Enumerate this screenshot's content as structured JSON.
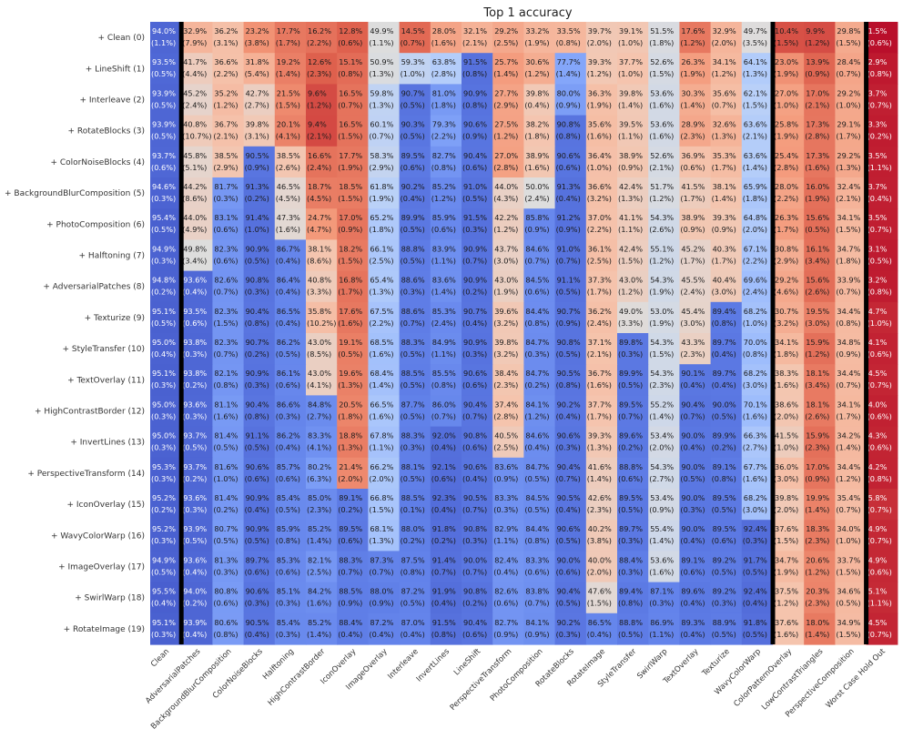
{
  "chart_data": {
    "type": "heatmap",
    "title": "Top 1 accuracy",
    "rows": [
      "+ Clean (0)",
      "+ LineShift (1)",
      "+ Interleave (2)",
      "+ RotateBlocks (3)",
      "+ ColorNoiseBlocks (4)",
      "+ BackgroundBlurComposition (5)",
      "+ PhotoComposition (6)",
      "+ Halftoning (7)",
      "+ AdversarialPatches (8)",
      "+ Texturize (9)",
      "+ StyleTransfer (10)",
      "+ TextOverlay (11)",
      "+ HighContrastBorder (12)",
      "+ InvertLines (13)",
      "+ PerspectiveTransform (14)",
      "+ IconOverlay (15)",
      "+ WavyColorWarp (16)",
      "+ ImageOverlay (17)",
      "+ SwirlWarp (18)",
      "+ RotateImage (19)"
    ],
    "columns": [
      "Clean",
      "AdversarialPatches",
      "BackgroundBlurComposition",
      "ColorNoiseBlocks",
      "Halftoning",
      "HighContrastBorder",
      "IconOverlay",
      "ImageOverlay",
      "Interleave",
      "InvertLines",
      "LineShift",
      "PerspectiveTransform",
      "PhotoComposition",
      "RotateBlocks",
      "RotateImage",
      "StyleTransfer",
      "SwirlWarp",
      "TextOverlay",
      "Texturize",
      "WavyColorWarp",
      "ColorPatternOverlay",
      "LowContrastTriangles",
      "PerspectiveComposition",
      "Worst Case Hold Out"
    ],
    "colormap": "coolwarm",
    "value_range": [
      0,
      100
    ],
    "separators_after_columns": [
      "Clean",
      "WavyColorWarp",
      "PerspectiveComposition"
    ],
    "values": [
      [
        "94.0",
        "32.9",
        "36.2",
        "23.2",
        "17.7",
        "16.2",
        "12.8",
        "49.9",
        "14.5",
        "28.0",
        "32.1",
        "29.2",
        "33.2",
        "33.5",
        "39.7",
        "39.1",
        "51.5",
        "17.6",
        "32.9",
        "49.7",
        "10.4",
        "9.9",
        "29.8",
        "1.5"
      ],
      [
        "93.5",
        "41.7",
        "36.6",
        "31.8",
        "19.2",
        "12.6",
        "15.1",
        "50.9",
        "59.3",
        "63.8",
        "91.5",
        "25.7",
        "30.6",
        "77.7",
        "39.3",
        "37.7",
        "52.6",
        "26.3",
        "34.1",
        "64.1",
        "23.0",
        "13.9",
        "28.4",
        "2.9"
      ],
      [
        "93.9",
        "45.2",
        "35.2",
        "42.7",
        "21.5",
        "9.6",
        "16.5",
        "59.8",
        "90.7",
        "81.0",
        "90.9",
        "27.7",
        "39.8",
        "80.0",
        "36.3",
        "39.8",
        "53.6",
        "30.3",
        "35.6",
        "62.1",
        "27.0",
        "17.0",
        "29.2",
        "3.7"
      ],
      [
        "93.9",
        "40.8",
        "36.7",
        "39.8",
        "20.1",
        "9.4",
        "16.5",
        "60.1",
        "90.3",
        "79.3",
        "90.6",
        "27.5",
        "38.2",
        "90.8",
        "35.6",
        "39.5",
        "53.6",
        "28.9",
        "32.6",
        "63.6",
        "25.8",
        "17.3",
        "29.1",
        "3.3"
      ],
      [
        "93.7",
        "45.8",
        "38.5",
        "90.5",
        "38.5",
        "16.6",
        "17.7",
        "58.3",
        "89.5",
        "82.7",
        "90.4",
        "27.0",
        "38.9",
        "90.6",
        "36.4",
        "38.9",
        "52.6",
        "36.9",
        "35.3",
        "63.6",
        "25.4",
        "17.3",
        "29.2",
        "3.5"
      ],
      [
        "94.6",
        "44.2",
        "81.7",
        "91.3",
        "46.5",
        "18.7",
        "18.5",
        "61.8",
        "90.2",
        "85.2",
        "91.0",
        "44.0",
        "50.0",
        "91.3",
        "36.6",
        "42.4",
        "51.7",
        "41.5",
        "38.1",
        "65.9",
        "28.0",
        "16.0",
        "32.4",
        "3.7"
      ],
      [
        "95.4",
        "44.0",
        "83.1",
        "91.4",
        "47.3",
        "24.7",
        "17.0",
        "65.2",
        "89.9",
        "85.9",
        "91.5",
        "42.2",
        "85.8",
        "91.2",
        "37.0",
        "41.1",
        "54.3",
        "38.9",
        "39.3",
        "64.8",
        "26.3",
        "15.6",
        "34.1",
        "3.5"
      ],
      [
        "94.9",
        "49.8",
        "82.3",
        "90.9",
        "86.7",
        "38.1",
        "18.2",
        "66.1",
        "88.8",
        "83.9",
        "90.9",
        "43.7",
        "84.6",
        "91.0",
        "36.1",
        "42.4",
        "55.1",
        "45.2",
        "40.3",
        "67.1",
        "30.8",
        "16.1",
        "34.7",
        "3.1"
      ],
      [
        "94.8",
        "93.6",
        "82.6",
        "90.8",
        "86.4",
        "40.8",
        "16.8",
        "65.4",
        "88.6",
        "83.6",
        "90.9",
        "43.0",
        "84.5",
        "91.1",
        "37.3",
        "43.0",
        "54.3",
        "45.5",
        "40.4",
        "69.6",
        "29.2",
        "15.6",
        "33.9",
        "3.2"
      ],
      [
        "95.1",
        "93.5",
        "82.3",
        "90.4",
        "86.5",
        "35.8",
        "17.6",
        "67.5",
        "88.6",
        "85.3",
        "90.7",
        "39.6",
        "84.4",
        "90.7",
        "36.2",
        "49.0",
        "53.0",
        "45.4",
        "89.4",
        "68.2",
        "30.7",
        "19.5",
        "34.4",
        "4.7"
      ],
      [
        "95.0",
        "93.8",
        "82.3",
        "90.7",
        "86.2",
        "43.0",
        "19.1",
        "68.5",
        "88.3",
        "84.9",
        "90.9",
        "39.8",
        "84.7",
        "90.8",
        "37.1",
        "89.8",
        "54.3",
        "43.3",
        "89.7",
        "70.0",
        "34.1",
        "15.9",
        "34.8",
        "4.1"
      ],
      [
        "95.1",
        "93.8",
        "82.1",
        "90.9",
        "86.1",
        "43.0",
        "19.6",
        "68.4",
        "88.5",
        "85.5",
        "90.6",
        "38.4",
        "84.7",
        "90.5",
        "36.7",
        "89.9",
        "54.3",
        "90.1",
        "89.7",
        "68.2",
        "38.3",
        "18.1",
        "34.4",
        "4.5"
      ],
      [
        "95.0",
        "93.6",
        "81.1",
        "90.4",
        "86.6",
        "84.8",
        "20.5",
        "66.5",
        "87.7",
        "86.0",
        "90.4",
        "37.4",
        "84.1",
        "90.2",
        "37.7",
        "89.5",
        "55.2",
        "90.4",
        "90.0",
        "70.1",
        "38.6",
        "18.1",
        "34.1",
        "4.0"
      ],
      [
        "95.0",
        "93.7",
        "81.4",
        "91.1",
        "86.2",
        "83.3",
        "18.8",
        "67.8",
        "88.3",
        "92.0",
        "90.8",
        "40.5",
        "84.6",
        "90.6",
        "39.3",
        "89.6",
        "53.4",
        "90.0",
        "89.9",
        "66.3",
        "41.5",
        "15.9",
        "34.2",
        "4.3"
      ],
      [
        "95.3",
        "93.7",
        "81.6",
        "90.6",
        "85.7",
        "80.2",
        "21.4",
        "66.2",
        "88.1",
        "92.1",
        "90.6",
        "83.6",
        "84.7",
        "90.4",
        "41.6",
        "88.8",
        "54.3",
        "90.0",
        "89.1",
        "67.7",
        "36.0",
        "17.0",
        "34.4",
        "4.2"
      ],
      [
        "95.2",
        "93.6",
        "81.4",
        "90.9",
        "85.4",
        "85.0",
        "89.1",
        "66.8",
        "88.5",
        "92.3",
        "90.5",
        "83.3",
        "84.5",
        "90.5",
        "42.6",
        "89.5",
        "53.4",
        "90.0",
        "89.5",
        "68.2",
        "39.8",
        "19.9",
        "35.4",
        "5.8"
      ],
      [
        "95.2",
        "93.9",
        "80.7",
        "90.9",
        "85.9",
        "85.2",
        "89.5",
        "68.1",
        "88.0",
        "91.8",
        "90.8",
        "82.9",
        "84.4",
        "90.6",
        "40.2",
        "89.7",
        "55.4",
        "90.0",
        "89.5",
        "92.4",
        "37.6",
        "18.3",
        "34.0",
        "4.9"
      ],
      [
        "94.9",
        "93.6",
        "81.3",
        "89.7",
        "85.3",
        "82.1",
        "88.3",
        "87.3",
        "87.5",
        "91.4",
        "90.0",
        "82.4",
        "83.3",
        "90.0",
        "40.0",
        "88.4",
        "53.6",
        "89.1",
        "89.2",
        "91.7",
        "34.7",
        "20.6",
        "33.7",
        "4.9"
      ],
      [
        "95.5",
        "94.0",
        "80.8",
        "90.6",
        "85.1",
        "84.2",
        "88.5",
        "88.0",
        "87.2",
        "91.9",
        "90.8",
        "82.6",
        "83.8",
        "90.4",
        "47.6",
        "89.4",
        "87.1",
        "89.6",
        "89.2",
        "92.4",
        "37.5",
        "20.3",
        "34.6",
        "5.1"
      ],
      [
        "95.1",
        "93.9",
        "80.6",
        "90.5",
        "85.4",
        "85.2",
        "88.4",
        "87.2",
        "87.0",
        "91.5",
        "90.4",
        "82.7",
        "84.1",
        "90.2",
        "86.5",
        "88.8",
        "86.9",
        "89.3",
        "88.9",
        "91.8",
        "37.6",
        "18.0",
        "34.9",
        "4.5"
      ]
    ],
    "stderr": [
      [
        "1.1",
        "7.9",
        "3.1",
        "3.8",
        "1.7",
        "2.2",
        "0.6",
        "1.1",
        "0.7",
        "1.6",
        "2.1",
        "2.5",
        "1.9",
        "0.8",
        "2.0",
        "1.0",
        "1.8",
        "1.2",
        "2.0",
        "3.5",
        "1.5",
        "1.2",
        "1.5",
        "0.6"
      ],
      [
        "0.5",
        "4.4",
        "2.2",
        "5.4",
        "1.4",
        "2.3",
        "0.8",
        "1.3",
        "1.0",
        "2.8",
        "0.8",
        "1.4",
        "1.2",
        "1.4",
        "1.2",
        "1.0",
        "1.5",
        "1.9",
        "1.2",
        "1.3",
        "1.9",
        "0.9",
        "0.7",
        "0.8"
      ],
      [
        "0.5",
        "2.4",
        "1.2",
        "2.7",
        "1.5",
        "1.2",
        "0.7",
        "1.3",
        "0.5",
        "1.8",
        "0.8",
        "2.9",
        "0.4",
        "0.9",
        "1.9",
        "1.4",
        "1.6",
        "1.4",
        "0.7",
        "1.5",
        "1.0",
        "2.1",
        "1.0",
        "0.7"
      ],
      [
        "0.5",
        "10.7",
        "2.1",
        "3.1",
        "4.1",
        "2.1",
        "1.5",
        "0.7",
        "0.5",
        "2.2",
        "0.9",
        "1.2",
        "1.8",
        "0.8",
        "1.6",
        "1.1",
        "1.6",
        "2.3",
        "1.3",
        "2.1",
        "1.9",
        "2.8",
        "1.7",
        "0.2"
      ],
      [
        "0.6",
        "5.1",
        "2.9",
        "0.9",
        "2.6",
        "2.4",
        "1.9",
        "2.9",
        "0.6",
        "0.8",
        "0.6",
        "2.8",
        "1.6",
        "0.6",
        "1.0",
        "0.9",
        "2.1",
        "0.6",
        "1.7",
        "1.4",
        "2.8",
        "1.6",
        "1.3",
        "1.1"
      ],
      [
        "0.3",
        "8.6",
        "0.3",
        "0.2",
        "4.5",
        "4.5",
        "1.5",
        "1.9",
        "0.4",
        "1.2",
        "0.5",
        "4.3",
        "2.4",
        "0.4",
        "3.2",
        "1.3",
        "1.2",
        "1.7",
        "1.4",
        "1.8",
        "2.2",
        "1.9",
        "2.1",
        "0.4"
      ],
      [
        "0.5",
        "4.9",
        "0.6",
        "1.0",
        "1.6",
        "4.7",
        "0.9",
        "1.8",
        "0.5",
        "0.6",
        "0.3",
        "1.2",
        "0.9",
        "0.9",
        "2.2",
        "1.1",
        "2.6",
        "0.9",
        "0.9",
        "2.0",
        "1.7",
        "0.5",
        "1.5",
        "0.7"
      ],
      [
        "0.3",
        "3.4",
        "0.6",
        "0.5",
        "0.4",
        "8.6",
        "1.5",
        "2.5",
        "0.5",
        "1.1",
        "0.7",
        "3.0",
        "0.7",
        "0.7",
        "2.5",
        "1.5",
        "1.2",
        "1.7",
        "1.7",
        "2.2",
        "2.9",
        "3.4",
        "1.8",
        "0.5"
      ],
      [
        "0.2",
        "0.4",
        "0.7",
        "0.3",
        "0.4",
        "3.3",
        "1.7",
        "1.3",
        "0.3",
        "1.4",
        "0.2",
        "1.9",
        "0.6",
        "0.5",
        "1.7",
        "1.2",
        "1.9",
        "2.4",
        "3.0",
        "2.4",
        "4.6",
        "2.6",
        "0.7",
        "0.8"
      ],
      [
        "0.5",
        "0.6",
        "1.5",
        "0.8",
        "0.4",
        "10.2",
        "1.6",
        "2.2",
        "0.7",
        "2.4",
        "0.4",
        "3.2",
        "0.8",
        "0.9",
        "2.4",
        "3.3",
        "1.9",
        "3.0",
        "0.8",
        "1.0",
        "3.2",
        "3.0",
        "0.8",
        "1.0"
      ],
      [
        "0.4",
        "0.3",
        "0.7",
        "0.2",
        "0.5",
        "8.5",
        "0.5",
        "1.6",
        "0.5",
        "1.1",
        "0.3",
        "3.2",
        "0.3",
        "0.5",
        "2.1",
        "0.3",
        "1.5",
        "2.3",
        "0.4",
        "0.8",
        "1.8",
        "1.2",
        "0.9",
        "0.6"
      ],
      [
        "0.3",
        "0.2",
        "0.8",
        "0.3",
        "0.6",
        "4.1",
        "1.3",
        "1.4",
        "0.5",
        "0.8",
        "0.6",
        "2.3",
        "0.2",
        "0.8",
        "1.6",
        "0.5",
        "2.3",
        "0.4",
        "0.4",
        "3.0",
        "1.6",
        "3.4",
        "0.7",
        "0.7"
      ],
      [
        "0.3",
        "0.3",
        "1.6",
        "0.8",
        "0.3",
        "2.7",
        "1.8",
        "1.6",
        "0.5",
        "0.7",
        "0.7",
        "2.8",
        "1.2",
        "0.4",
        "1.7",
        "0.7",
        "1.4",
        "0.7",
        "0.5",
        "1.6",
        "2.0",
        "2.6",
        "1.7",
        "0.6"
      ],
      [
        "0.3",
        "0.5",
        "0.5",
        "0.5",
        "0.4",
        "4.1",
        "1.3",
        "1.1",
        "0.3",
        "0.4",
        "0.6",
        "2.5",
        "0.4",
        "0.3",
        "1.3",
        "0.2",
        "2.0",
        "0.4",
        "0.2",
        "2.7",
        "1.0",
        "2.3",
        "1.4",
        "0.6"
      ],
      [
        "0.3",
        "0.2",
        "1.0",
        "0.6",
        "0.6",
        "6.3",
        "2.0",
        "2.0",
        "0.5",
        "0.6",
        "0.4",
        "0.9",
        "0.5",
        "0.7",
        "1.4",
        "0.6",
        "2.7",
        "0.5",
        "0.8",
        "1.6",
        "3.0",
        "0.9",
        "1.2",
        "0.8"
      ],
      [
        "0.2",
        "0.3",
        "0.2",
        "0.4",
        "0.5",
        "2.3",
        "0.2",
        "1.5",
        "0.1",
        "0.4",
        "0.7",
        "0.3",
        "0.5",
        "0.4",
        "2.3",
        "0.5",
        "0.9",
        "0.3",
        "0.5",
        "3.0",
        "2.0",
        "1.4",
        "0.7",
        "0.7"
      ],
      [
        "0.3",
        "0.5",
        "0.5",
        "0.5",
        "0.8",
        "1.4",
        "0.6",
        "1.3",
        "0.2",
        "0.2",
        "0.3",
        "1.1",
        "0.8",
        "0.5",
        "3.8",
        "0.3",
        "1.4",
        "0.4",
        "0.6",
        "0.3",
        "1.5",
        "2.3",
        "1.0",
        "0.7"
      ],
      [
        "0.5",
        "0.4",
        "0.3",
        "0.6",
        "0.6",
        "2.5",
        "0.7",
        "0.7",
        "0.8",
        "0.7",
        "0.7",
        "0.4",
        "0.6",
        "0.6",
        "2.0",
        "0.3",
        "1.6",
        "0.6",
        "0.5",
        "0.5",
        "1.9",
        "1.2",
        "1.5",
        "0.6"
      ],
      [
        "0.4",
        "0.2",
        "0.6",
        "0.3",
        "0.3",
        "1.6",
        "0.9",
        "0.9",
        "0.5",
        "0.4",
        "0.2",
        "0.6",
        "0.7",
        "0.5",
        "1.5",
        "0.8",
        "0.3",
        "0.4",
        "0.3",
        "0.4",
        "1.2",
        "2.3",
        "0.5",
        "1.1"
      ],
      [
        "0.3",
        "0.4",
        "0.8",
        "0.4",
        "0.3",
        "1.4",
        "0.4",
        "0.4",
        "0.4",
        "0.8",
        "0.6",
        "0.9",
        "0.9",
        "0.3",
        "0.4",
        "0.5",
        "1.1",
        "0.4",
        "0.5",
        "0.5",
        "1.6",
        "1.4",
        "1.5",
        "0.7"
      ]
    ]
  }
}
